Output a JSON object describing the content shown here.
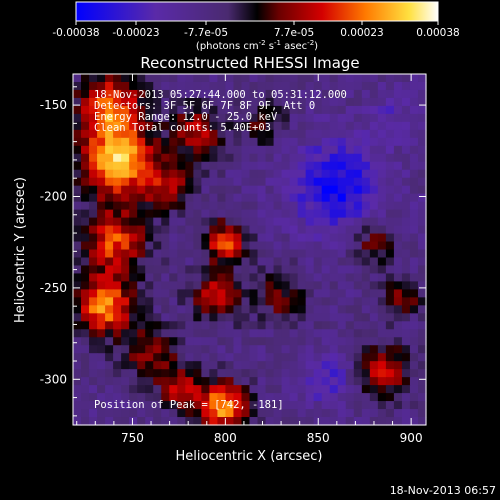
{
  "chart_data": {
    "type": "heatmap",
    "title": "Reconstructed RHESSI Image",
    "xlabel": "Heliocentric X (arcsec)",
    "ylabel": "Heliocentric Y (arcsec)",
    "xlim": [
      718,
      908
    ],
    "ylim": [
      -325,
      -133
    ],
    "x_ticks": [
      750,
      800,
      850,
      900
    ],
    "y_ticks": [
      -150,
      -200,
      -250,
      -300
    ],
    "colorbar": {
      "ticks": [
        "-0.00038",
        "-0.00023",
        "-7.7e-05",
        "7.7e-05",
        "0.00023",
        "0.00038"
      ],
      "unit_base": "(photons cm",
      "unit_sup1": "-2",
      "unit_mid": " s",
      "unit_sup2": "-1",
      "unit_mid2": " asec",
      "unit_sup3": "-2",
      "unit_end": ")",
      "range": [
        -0.00038,
        0.00038
      ]
    },
    "annotations": [
      "18-Nov-2013 05:27:44.000 to 05:31:12.000",
      "Detectors: 3F 5F 6F 7F 8F 9F, Att 0",
      "Energy Range: 12.0 - 25.0 keV",
      "Clean    Total counts: 5.40E+03"
    ],
    "peak_label": "Position of Peak = [742, -181]",
    "peak": [
      742,
      -181
    ],
    "blobs": [
      {
        "x": 742,
        "y": -181,
        "sigma": 14,
        "amp": 1.0
      },
      {
        "x": 738,
        "y": -150,
        "sigma": 12,
        "amp": 0.75
      },
      {
        "x": 740,
        "y": -225,
        "sigma": 12,
        "amp": 0.7
      },
      {
        "x": 735,
        "y": -260,
        "sigma": 11,
        "amp": 0.85
      },
      {
        "x": 760,
        "y": -285,
        "sigma": 10,
        "amp": 0.45
      },
      {
        "x": 770,
        "y": -195,
        "sigma": 9,
        "amp": 0.45
      },
      {
        "x": 785,
        "y": -165,
        "sigma": 10,
        "amp": 0.5
      },
      {
        "x": 800,
        "y": -225,
        "sigma": 8,
        "amp": 0.7
      },
      {
        "x": 795,
        "y": -255,
        "sigma": 9,
        "amp": 0.6
      },
      {
        "x": 798,
        "y": -315,
        "sigma": 10,
        "amp": 0.85
      },
      {
        "x": 775,
        "y": -305,
        "sigma": 8,
        "amp": 0.5
      },
      {
        "x": 820,
        "y": -160,
        "sigma": 9,
        "amp": 0.3
      },
      {
        "x": 830,
        "y": -255,
        "sigma": 10,
        "amp": 0.35
      },
      {
        "x": 880,
        "y": -225,
        "sigma": 9,
        "amp": 0.4
      },
      {
        "x": 885,
        "y": -295,
        "sigma": 10,
        "amp": 0.55
      },
      {
        "x": 895,
        "y": -255,
        "sigma": 7,
        "amp": 0.45
      },
      {
        "x": 860,
        "y": -195,
        "sigma": 18,
        "amp": -0.55
      },
      {
        "x": 855,
        "y": -300,
        "sigma": 10,
        "amp": -0.35
      },
      {
        "x": 890,
        "y": -155,
        "sigma": 10,
        "amp": -0.2
      }
    ],
    "grid": false
  },
  "footer": {
    "timestamp": "18-Nov-2013 06:57"
  }
}
